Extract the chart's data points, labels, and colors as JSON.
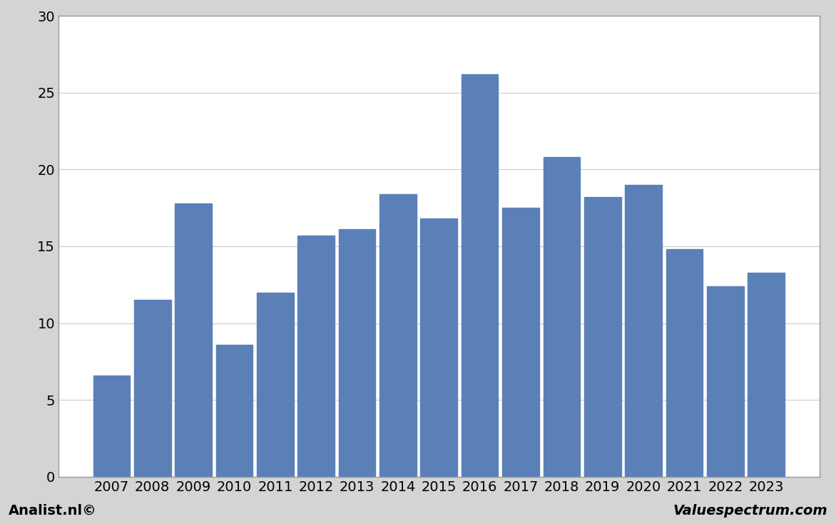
{
  "years": [
    2007,
    2008,
    2009,
    2010,
    2011,
    2012,
    2013,
    2014,
    2015,
    2016,
    2017,
    2018,
    2019,
    2020,
    2021,
    2022,
    2023
  ],
  "values": [
    6.6,
    11.5,
    17.8,
    8.6,
    12.0,
    15.7,
    16.1,
    18.4,
    16.8,
    26.2,
    17.5,
    20.8,
    18.2,
    19.0,
    14.8,
    12.4,
    13.3
  ],
  "bar_color": "#5b80b8",
  "background_color": "#d4d4d4",
  "plot_background_color": "#ffffff",
  "border_color": "#999999",
  "grid_color": "#cccccc",
  "ylim": [
    0,
    30
  ],
  "yticks": [
    0,
    5,
    10,
    15,
    20,
    25,
    30
  ],
  "left_footer": "Analist.nl©",
  "right_footer": "Valuespectrum.com",
  "footer_fontsize": 14,
  "tick_fontsize": 14,
  "bar_width": 0.9
}
